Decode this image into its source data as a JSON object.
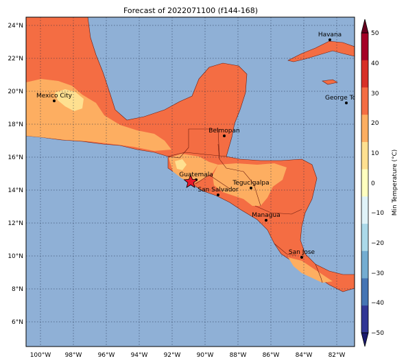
{
  "title": "Forecast of 2022071100 (f144-168)",
  "latitude_labels": [
    "24°N",
    "22°N",
    "20°N",
    "18°N",
    "16°N",
    "14°N",
    "12°N",
    "10°N",
    "8°N",
    "6°N"
  ],
  "longitude_labels": [
    "100°W",
    "98°W",
    "96°W",
    "94°W",
    "92°W",
    "90°W",
    "88°W",
    "86°W",
    "84°W",
    "82°W"
  ],
  "cities": [
    {
      "name": "Havana"
    },
    {
      "name": "Mexico City"
    },
    {
      "name": "George Tow"
    },
    {
      "name": "Belmopan"
    },
    {
      "name": "Guatemala"
    },
    {
      "name": "Tegucigalpa"
    },
    {
      "name": "San Salvador"
    },
    {
      "name": "Managua"
    },
    {
      "name": "San Jose"
    }
  ],
  "colorbar": {
    "label": "Min Temperature (°C)",
    "tick_labels": [
      "50",
      "40",
      "30",
      "20",
      "10",
      "0",
      "−10",
      "−20",
      "−30",
      "−40",
      "−50"
    ],
    "colors": [
      "#a50026",
      "#d73027",
      "#f46d43",
      "#fdae61",
      "#fee090",
      "#ffffbf",
      "#e0f3f8",
      "#abd9e9",
      "#74add1",
      "#4575b4",
      "#313695"
    ]
  },
  "colors": {
    "ocean": "#8fb0d6",
    "land_warm": "#f46d43",
    "land_mild": "#fdae61",
    "land_cool": "#fee090"
  }
}
